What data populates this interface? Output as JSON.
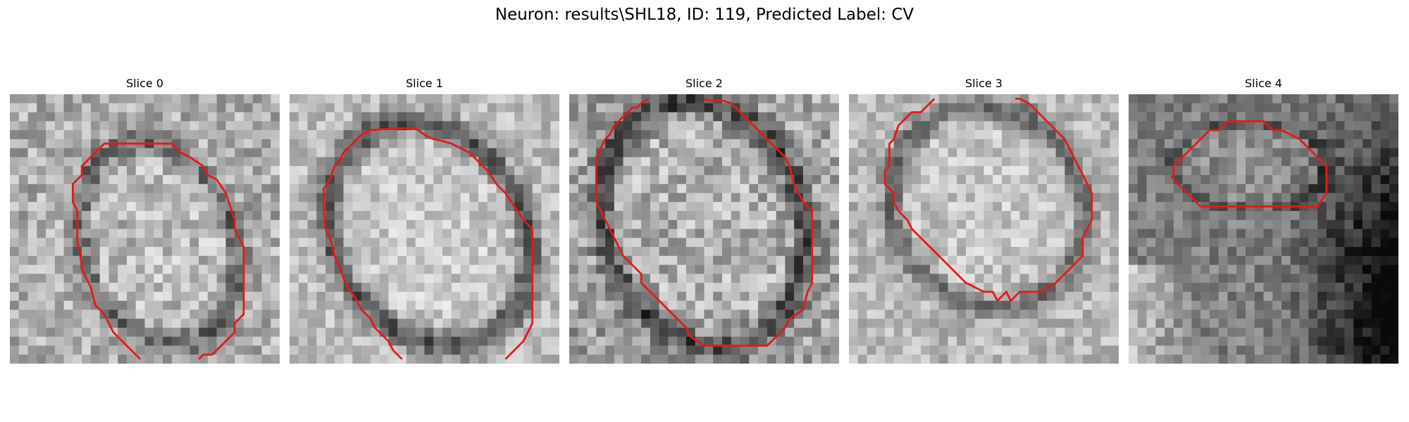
{
  "figure": {
    "title": "Neuron: results\\SHL18, ID: 119, Predicted Label: CV"
  },
  "panels": [
    {
      "title": "Slice 0",
      "seed": 11,
      "brightness": 0.68,
      "contrast": 0.18,
      "ring": 0.28,
      "dark_side": 0.0
    },
    {
      "title": "Slice 1",
      "seed": 23,
      "brightness": 0.74,
      "contrast": 0.14,
      "ring": 0.42,
      "dark_side": 0.0
    },
    {
      "title": "Slice 2",
      "seed": 37,
      "brightness": 0.64,
      "contrast": 0.2,
      "ring": 0.36,
      "dark_side": 0.0
    },
    {
      "title": "Slice 3",
      "seed": 41,
      "brightness": 0.72,
      "contrast": 0.14,
      "ring": 0.3,
      "dark_side": 0.0
    },
    {
      "title": "Slice 4",
      "seed": 53,
      "brightness": 0.5,
      "contrast": 0.14,
      "ring": 0.16,
      "dark_side": 0.55
    }
  ],
  "colors": {
    "contour": "#e31a1c",
    "background": "#ffffff"
  }
}
